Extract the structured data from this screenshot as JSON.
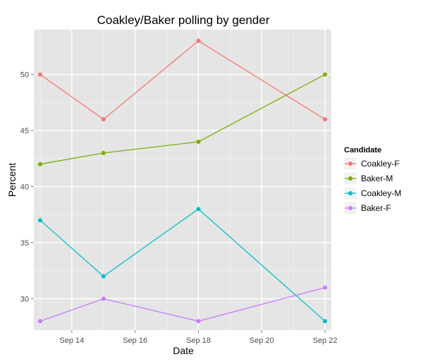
{
  "chart_data": {
    "type": "line",
    "title": "Coakley/Baker polling by gender",
    "xlabel": "Date",
    "ylabel": "Percent",
    "x": [
      "Sep 13",
      "Sep 15",
      "Sep 18",
      "Sep 22"
    ],
    "xlim": [
      "Sep 12.8",
      "Sep 22.2"
    ],
    "x_ticks": [
      "Sep 14",
      "Sep 16",
      "Sep 18",
      "Sep 20",
      "Sep 22"
    ],
    "ylim": [
      27.2,
      54.0
    ],
    "y_ticks": [
      30,
      35,
      40,
      45,
      50
    ],
    "grid": true,
    "legend": {
      "title": "Candidate",
      "placement": "right"
    },
    "series": [
      {
        "name": "Coakley-F",
        "color": "#F8766D",
        "values": [
          50,
          46,
          53,
          46
        ]
      },
      {
        "name": "Baker-M",
        "color": "#7CAE00",
        "values": [
          42,
          43,
          44,
          50
        ]
      },
      {
        "name": "Coakley-M",
        "color": "#00BFC4",
        "values": [
          37,
          32,
          38,
          28
        ]
      },
      {
        "name": "Baker-F",
        "color": "#C77CFF",
        "values": [
          28,
          30,
          28,
          31
        ]
      }
    ]
  }
}
